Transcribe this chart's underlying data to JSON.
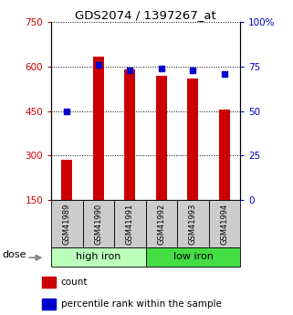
{
  "title": "GDS2074 / 1397267_at",
  "samples": [
    "GSM41989",
    "GSM41990",
    "GSM41991",
    "GSM41992",
    "GSM41993",
    "GSM41994"
  ],
  "counts": [
    285,
    635,
    590,
    570,
    560,
    455
  ],
  "percentiles": [
    50,
    76,
    73,
    74,
    73,
    71
  ],
  "bar_color": "#cc0000",
  "dot_color": "#0000cc",
  "left_yticks": [
    150,
    300,
    450,
    600,
    750
  ],
  "right_yticks": [
    0,
    25,
    50,
    75,
    100
  ],
  "ylim_left": [
    150,
    750
  ],
  "ylim_right": [
    0,
    100
  ],
  "high_iron_color": "#bbffbb",
  "low_iron_color": "#44dd44",
  "sample_box_color": "#cccccc",
  "tick_color_left": "#cc0000",
  "tick_color_right": "#0000cc",
  "legend_count_label": "count",
  "legend_pct_label": "percentile rank within the sample",
  "dose_label": "dose",
  "bar_width": 0.35
}
